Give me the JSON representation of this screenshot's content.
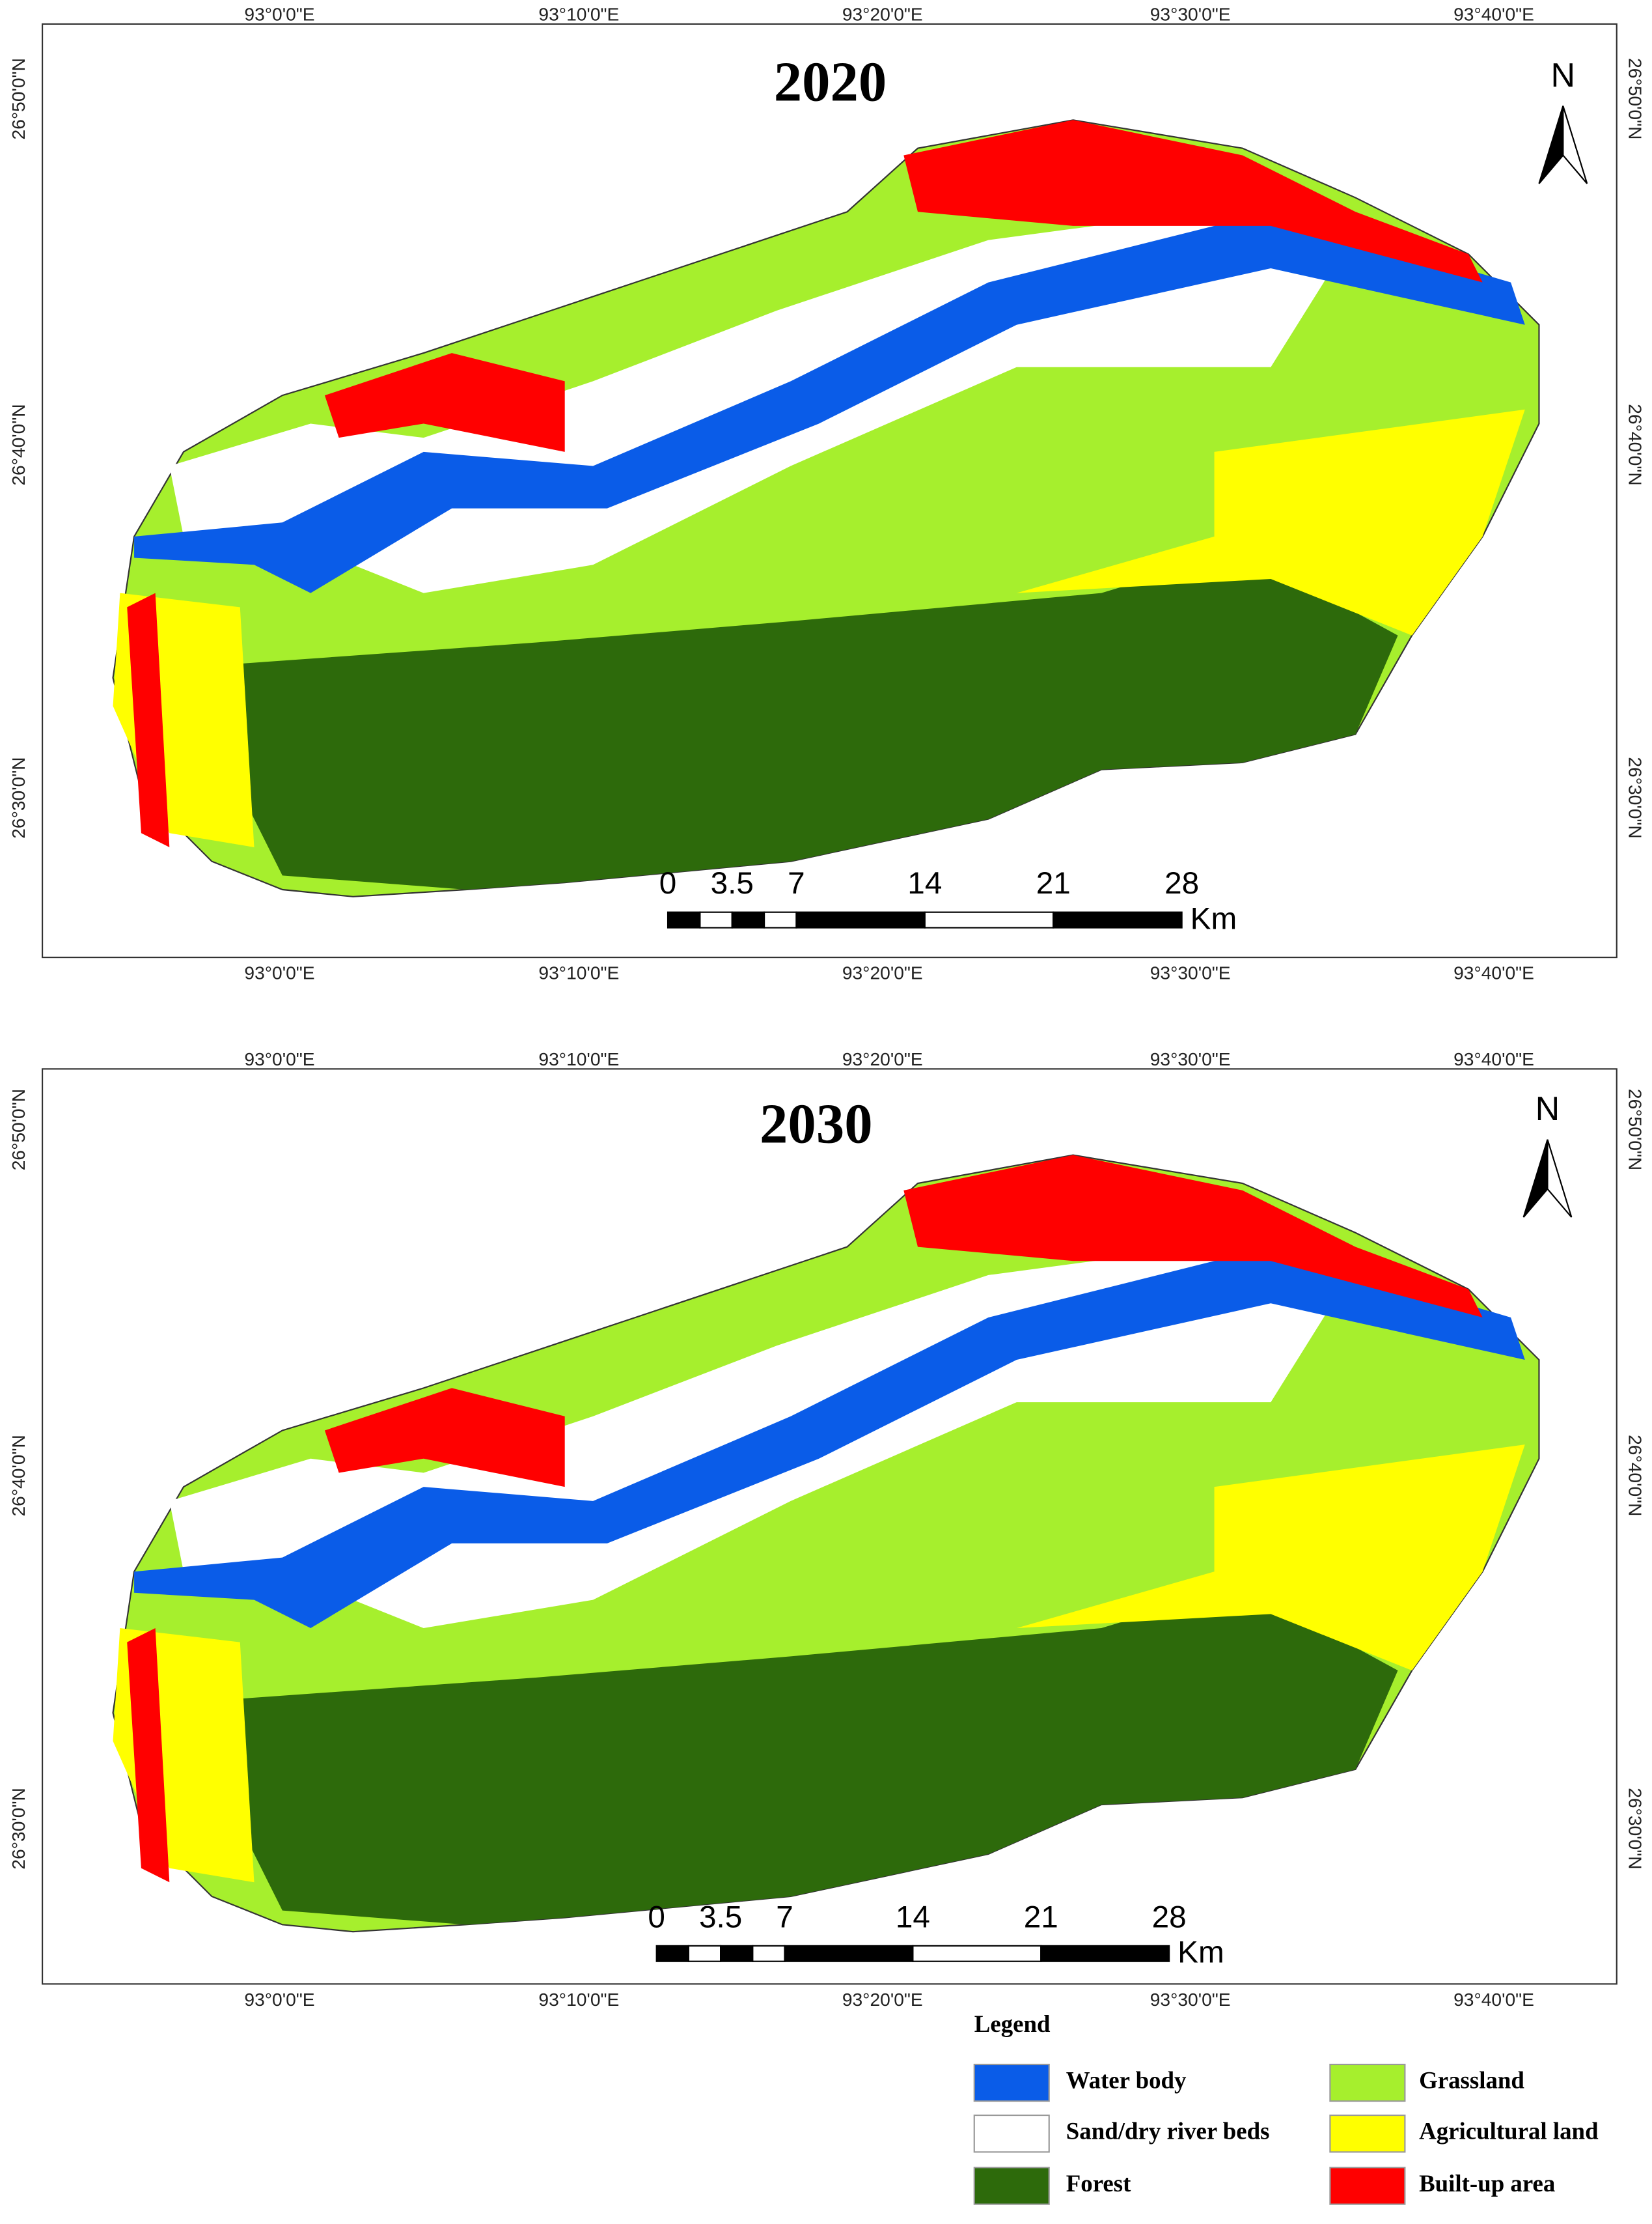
{
  "maps": [
    {
      "title": "2020",
      "top_labels": [
        "93°0'0\"E",
        "93°10'0\"E",
        "93°20'0\"E",
        "93°30'0\"E",
        "93°40'0\"E"
      ],
      "bottom_labels": [
        "93°0'0\"E",
        "93°10'0\"E",
        "93°20'0\"E",
        "93°30'0\"E",
        "93°40'0\"E"
      ],
      "left_labels": [
        "26°50'0\"N",
        "26°40'0\"N",
        "26°30'0\"N"
      ],
      "right_labels": [
        "26°50'0\"N",
        "26°40'0\"N",
        "26°30'0\"N"
      ],
      "north": "N",
      "scale": {
        "ticks": [
          0,
          3.5,
          7,
          14,
          21,
          28
        ],
        "unit": "Km"
      }
    },
    {
      "title": "2030",
      "top_labels": [
        "93°0'0\"E",
        "93°10'0\"E",
        "93°20'0\"E",
        "93°30'0\"E",
        "93°40'0\"E"
      ],
      "bottom_labels": [
        "93°0'0\"E",
        "93°10'0\"E",
        "93°20'0\"E",
        "93°30'0\"E",
        "93°40'0\"E"
      ],
      "left_labels": [
        "26°50'0\"N",
        "26°40'0\"N",
        "26°30'0\"N"
      ],
      "right_labels": [
        "26°50'0\"N",
        "26°40'0\"N",
        "26°30'0\"N"
      ],
      "north": "N",
      "scale": {
        "ticks": [
          0,
          3.5,
          7,
          14,
          21,
          28
        ],
        "unit": "Km"
      }
    }
  ],
  "legend": {
    "title": "Legend",
    "items": [
      {
        "label": "Water body",
        "color": "#0a5ce8"
      },
      {
        "label": "Sand/dry river beds",
        "color": "#ffffff"
      },
      {
        "label": "Forest",
        "color": "#2d6a0b"
      },
      {
        "label": "Grassland",
        "color": "#a6ef2d"
      },
      {
        "label": "Agricultural land",
        "color": "#ffff00"
      },
      {
        "label": "Built-up area",
        "color": "#ff0000"
      }
    ]
  }
}
